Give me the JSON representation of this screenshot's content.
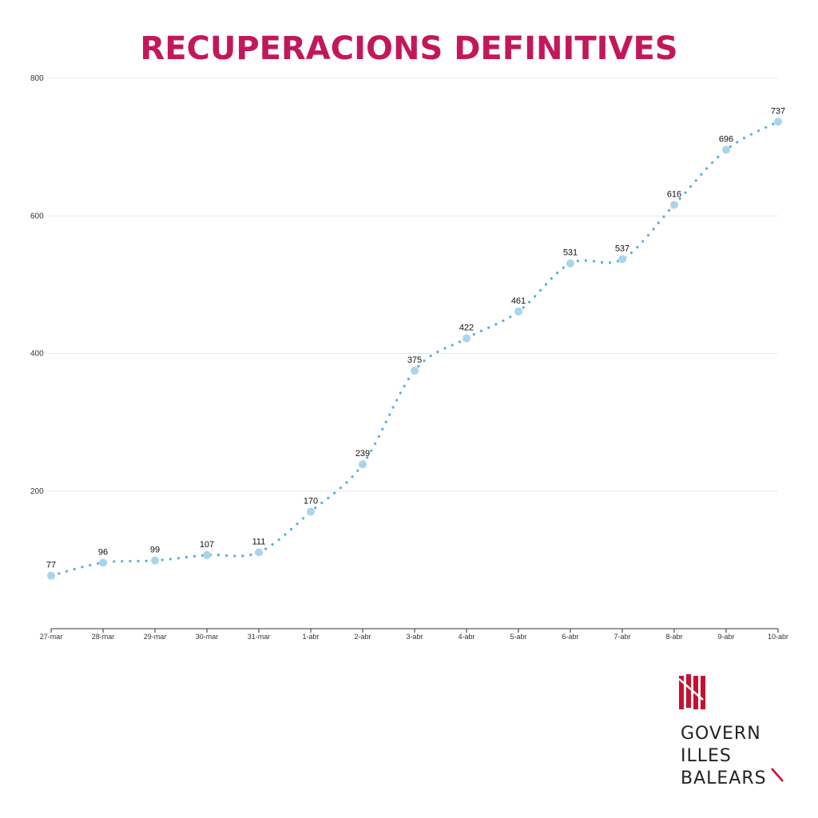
{
  "title": "RECUPERACIONS DEFINITIVES",
  "logo": {
    "lines": [
      "GOVERN",
      "ILLES",
      "BALEARS"
    ],
    "accent_color": "#c8102e"
  },
  "colors": {
    "title": "#c2185b",
    "line": "#5aafd6",
    "marker": "#a9d4ee",
    "grid": "#e8e8e8"
  },
  "chart_data": {
    "type": "line",
    "title": "RECUPERACIONS DEFINITIVES",
    "categories": [
      "27-mar",
      "28-mar",
      "29-mar",
      "30-mar",
      "31-mar",
      "1-abr",
      "2-abr",
      "3-abr",
      "4-abr",
      "5-abr",
      "6-abr",
      "7-abr",
      "8-abr",
      "9-abr",
      "10-abr"
    ],
    "series": [
      {
        "values": [
          77,
          96,
          99,
          107,
          111,
          170,
          239,
          375,
          422,
          461,
          531,
          537,
          616,
          696,
          737
        ]
      }
    ],
    "data_labels": true,
    "yticks": [
      200,
      400,
      600,
      800
    ],
    "ylim": [
      0,
      800
    ],
    "grid": true,
    "line_style": "dotted",
    "xlabel": "",
    "ylabel": ""
  }
}
